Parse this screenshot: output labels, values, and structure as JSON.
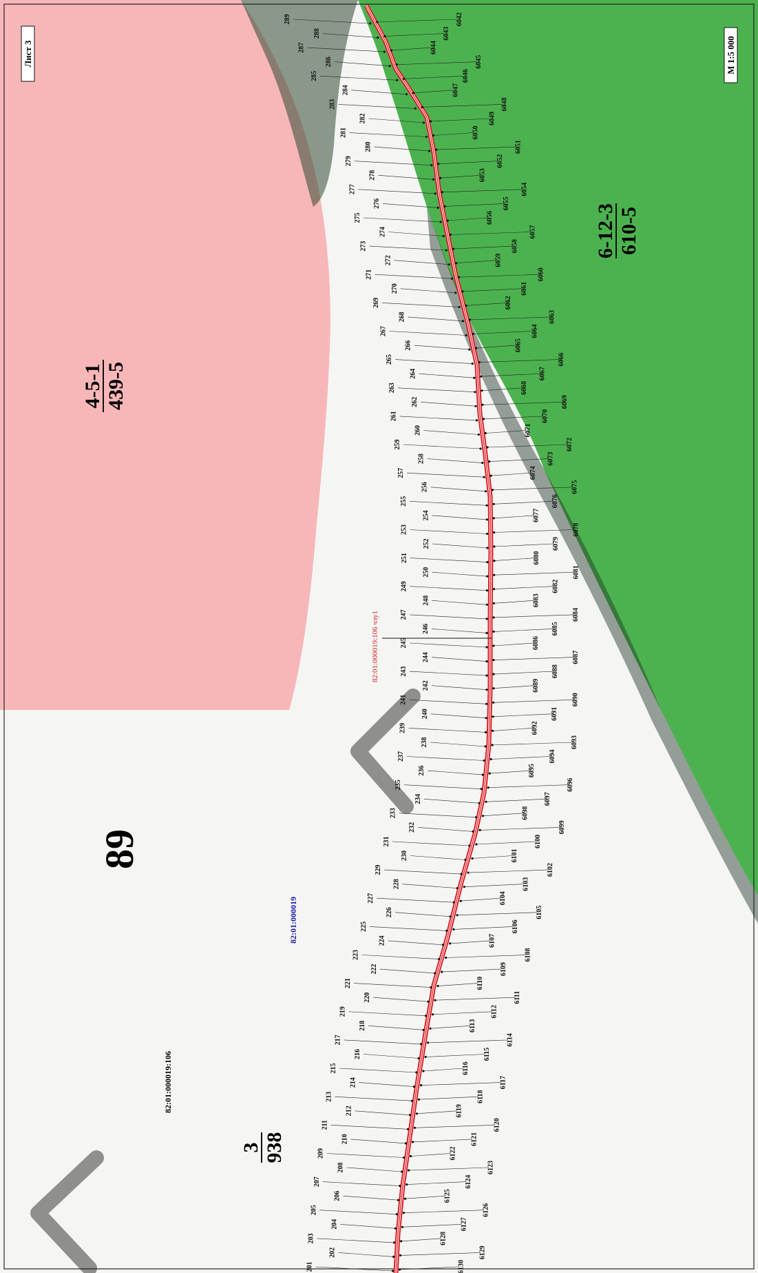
{
  "sheet": {
    "label": "Лист 3",
    "scale": "М 1:5 000"
  },
  "colors": {
    "zone_pink": "#f7b7b9",
    "zone_green": "#4cb24f",
    "line_red": "#d9181f",
    "leader": "#222222",
    "cadastral_blue": "#1a1aa8",
    "caption_red": "#d02828"
  },
  "zones": [
    {
      "id": "zone-4-5-1",
      "code": "4-5-1",
      "sub": "439-5"
    },
    {
      "id": "zone-6-12-3",
      "code": "6-12-3",
      "sub": "610-5"
    },
    {
      "id": "zone-3",
      "code": "3",
      "sub": "938"
    }
  ],
  "block_number": "89",
  "cadastral_quarter": "82:01:000019",
  "parcel_number": "82:01:000019:106",
  "section_caption": "82:01:000019:106 чзу1",
  "left_points": [
    "289",
    "288",
    "287",
    "286",
    "285",
    "284",
    "283",
    "282",
    "281",
    "280",
    "279",
    "278",
    "277",
    "276",
    "275",
    "274",
    "273",
    "272",
    "271",
    "270",
    "269",
    "268",
    "267",
    "266",
    "265",
    "264",
    "263",
    "262",
    "261",
    "260",
    "259",
    "258",
    "257",
    "256",
    "255",
    "254",
    "253",
    "252",
    "251",
    "250",
    "249",
    "248",
    "247",
    "246",
    "245",
    "244",
    "243",
    "242",
    "241",
    "240",
    "239",
    "238",
    "237",
    "236",
    "235",
    "234",
    "233",
    "232",
    "231",
    "230",
    "229",
    "228",
    "227",
    "226",
    "225",
    "224",
    "223",
    "222",
    "221",
    "220",
    "219",
    "218",
    "217",
    "216",
    "215",
    "214",
    "213",
    "212",
    "211",
    "210",
    "209",
    "208",
    "207",
    "206",
    "205",
    "204",
    "203",
    "202",
    "201"
  ],
  "right_points": [
    "6042",
    "6043",
    "6044",
    "6045",
    "6046",
    "6047",
    "6048",
    "6049",
    "6050",
    "6051",
    "6052",
    "6053",
    "6054",
    "6055",
    "6056",
    "6057",
    "6058",
    "6059",
    "6060",
    "6061",
    "6062",
    "6063",
    "6064",
    "6065",
    "6066",
    "6067",
    "6068",
    "6069",
    "6070",
    "6071",
    "6072",
    "6073",
    "6074",
    "6075",
    "6076",
    "6077",
    "6078",
    "6079",
    "6080",
    "6081",
    "6082",
    "6083",
    "6084",
    "6085",
    "6086",
    "6087",
    "6088",
    "6089",
    "6090",
    "6091",
    "6092",
    "6093",
    "6094",
    "6095",
    "6096",
    "6097",
    "6098",
    "6099",
    "6100",
    "6101",
    "6102",
    "6103",
    "6104",
    "6105",
    "6106",
    "6107",
    "6108",
    "6109",
    "6110",
    "6111",
    "6112",
    "6113",
    "6114",
    "6115",
    "6116",
    "6117",
    "6118",
    "6119",
    "6120",
    "6121",
    "6122",
    "6123",
    "6124",
    "6125",
    "6126",
    "6127",
    "6128",
    "6129",
    "6130"
  ]
}
